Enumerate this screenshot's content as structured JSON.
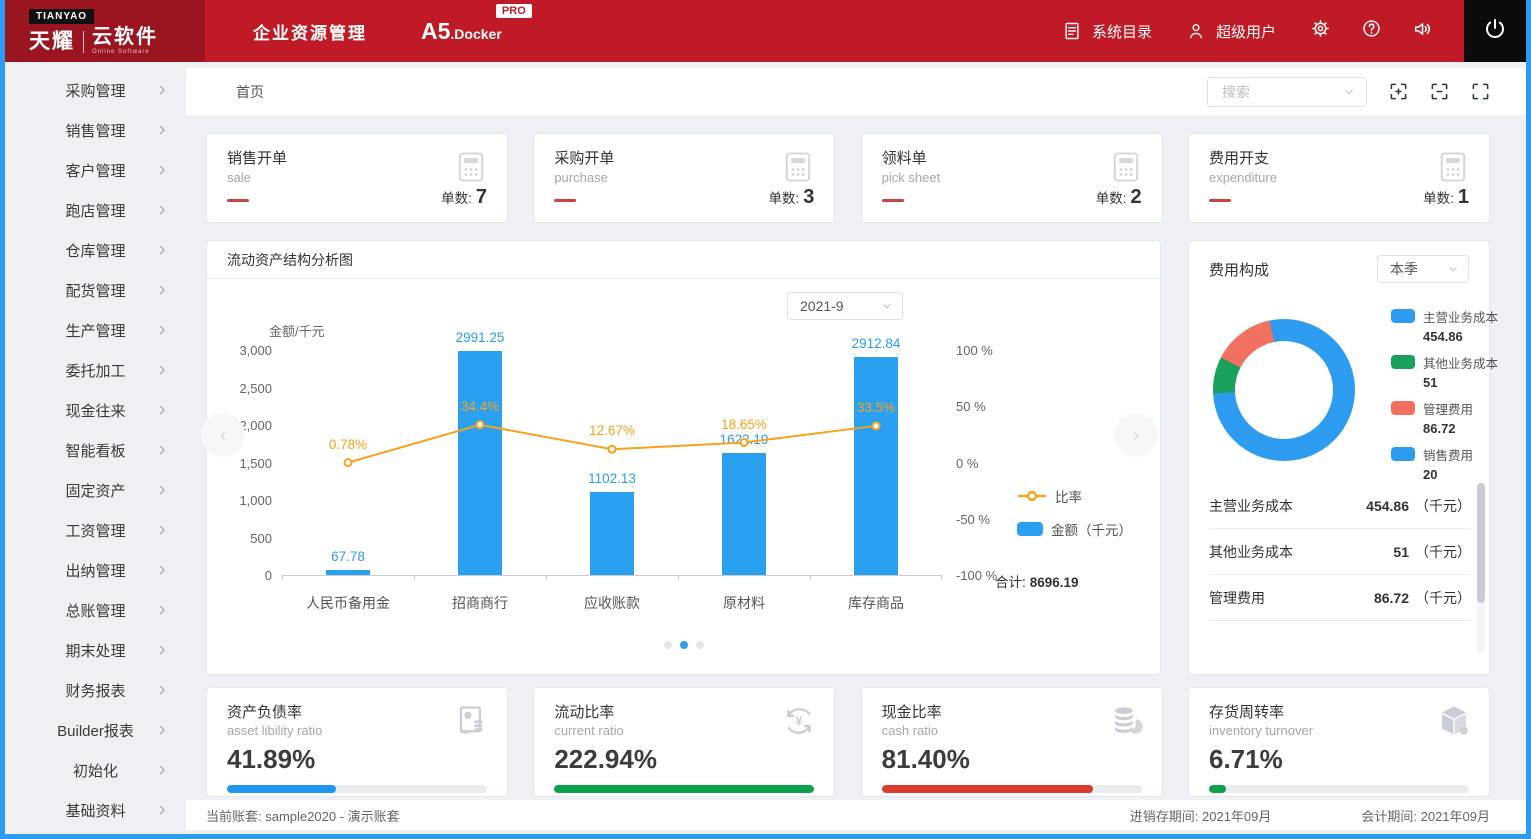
{
  "header": {
    "brand_badge": "TIANYAO",
    "brand_cn": "天耀",
    "brand_sub": "云软件",
    "brand_en": "Online Software",
    "app_title": "企业资源管理",
    "edition": "A5",
    "edition_suffix": ".Docker",
    "pro_badge": "PRO",
    "menu": [
      {
        "label": "系统目录",
        "icon": "document-icon"
      },
      {
        "label": "超级用户",
        "icon": "user-icon"
      }
    ]
  },
  "sidebar": {
    "items": [
      "采购管理",
      "销售管理",
      "客户管理",
      "跑店管理",
      "仓库管理",
      "配货管理",
      "生产管理",
      "委托加工",
      "现金往来",
      "智能看板",
      "固定资产",
      "工资管理",
      "出纳管理",
      "总账管理",
      "期末处理",
      "财务报表",
      "Builder报表",
      "初始化",
      "基础资料"
    ]
  },
  "tabbar": {
    "active_tab": "首页",
    "search_placeholder": "搜索"
  },
  "stat_cards": [
    {
      "title": "销售开单",
      "subtitle": "sale",
      "count_label": "单数:",
      "count": "7"
    },
    {
      "title": "采购开单",
      "subtitle": "purchase",
      "count_label": "单数:",
      "count": "3"
    },
    {
      "title": "领料单",
      "subtitle": "pick sheet",
      "count_label": "单数:",
      "count": "2"
    },
    {
      "title": "费用开支",
      "subtitle": "expenditure",
      "count_label": "单数:",
      "count": "1"
    }
  ],
  "chart_card": {
    "title": "流动资产结构分析图",
    "period_selector": "2021-9",
    "total_label": "合计:",
    "total_value": "8696.19",
    "carousel": {
      "dots": 3,
      "active": 1
    }
  },
  "chart_data": [
    {
      "id": "current-assets-structure",
      "type": "bar",
      "title": "流动资产结构分析图",
      "categories": [
        "人民币备用金",
        "招商商行",
        "应收账款",
        "原材料",
        "库存商品"
      ],
      "series": [
        {
          "name": "金额（千元）",
          "type": "bar",
          "values": [
            67.78,
            2991.25,
            1102.13,
            1622.19,
            2912.84
          ],
          "color": "#29a1f0"
        },
        {
          "name": "比率",
          "type": "line",
          "values": [
            0.78,
            34.4,
            12.67,
            18.65,
            33.5
          ],
          "unit": "%",
          "color": "#f9a11b"
        }
      ],
      "ylabel_left": "金额/千元",
      "ylim_left": [
        0,
        3000
      ],
      "yticks_left": [
        0,
        500,
        1000,
        1500,
        2000,
        2500,
        3000
      ],
      "ylim_right": [
        -100,
        100
      ],
      "yticks_right": [
        -100,
        -50,
        0,
        50,
        100
      ],
      "legend_position": "right",
      "grid": false,
      "total": 8696.19
    },
    {
      "id": "expense-composition",
      "type": "pie",
      "title": "费用构成",
      "donut": true,
      "labels": [
        "主营业务成本",
        "其他业务成本",
        "管理费用",
        "销售费用"
      ],
      "values": [
        454.86,
        51,
        86.72,
        20
      ],
      "colors": [
        "#2d9cf0",
        "#18a05c",
        "#f2705f",
        "#2d9cf0"
      ],
      "legend_position": "right"
    }
  ],
  "expense_panel": {
    "title": "费用构成",
    "period_selector": "本季",
    "list": [
      {
        "label": "主营业务成本",
        "value": "454.86",
        "unit": "（千元）"
      },
      {
        "label": "其他业务成本",
        "value": "51",
        "unit": "（千元）"
      },
      {
        "label": "管理费用",
        "value": "86.72",
        "unit": "（千元）"
      }
    ]
  },
  "ratio_cards": [
    {
      "title": "资产负债率",
      "subtitle": "asset libility ratio",
      "value": "41.89%",
      "percent": 41.89,
      "color": "#2196f3",
      "icon": "report-icon"
    },
    {
      "title": "流动比率",
      "subtitle": "current ratio",
      "value": "222.94%",
      "percent": 100,
      "color": "#0aa14e",
      "icon": "currency-cycle-icon"
    },
    {
      "title": "现金比率",
      "subtitle": "cash ratio",
      "value": "81.40%",
      "percent": 81.4,
      "color": "#dd3b30",
      "icon": "coins-icon"
    },
    {
      "title": "存货周转率",
      "subtitle": "inventory turnover",
      "value": "6.71%",
      "percent": 6.71,
      "color": "#0aa14e",
      "icon": "box-icon"
    }
  ],
  "status_bar": {
    "account": "当前账套: sample2020 - 演示账套",
    "inventory_period": "进销存期间: 2021年09月",
    "accounting_period": "会计期间: 2021年09月"
  },
  "colors": {
    "header_red": "#c01a26",
    "logo_red": "#9a1520",
    "accent_blue": "#29a1f0",
    "line_orange": "#f9a11b",
    "border_blue": "#2e9bf0"
  }
}
